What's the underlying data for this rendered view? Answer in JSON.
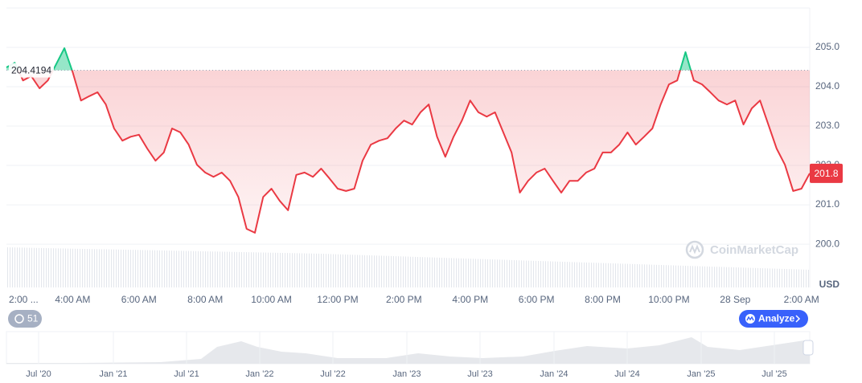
{
  "chart_data": {
    "type": "line",
    "categories": [
      "2:00 ...",
      null,
      null,
      null,
      null,
      null,
      null,
      null,
      "4:00 AM",
      null,
      null,
      null,
      null,
      null,
      null,
      null,
      "6:00 AM",
      null,
      null,
      null,
      null,
      null,
      null,
      null,
      "8:00 AM",
      null,
      null,
      null,
      null,
      null,
      null,
      null,
      "10:00 AM",
      null,
      null,
      null,
      null,
      null,
      null,
      null,
      "12:00 PM",
      null,
      null,
      null,
      null,
      null,
      null,
      null,
      "2:00 PM",
      null,
      null,
      null,
      null,
      null,
      null,
      null,
      "4:00 PM",
      null,
      null,
      null,
      null,
      null,
      null,
      null,
      "6:00 PM",
      null,
      null,
      null,
      null,
      null,
      null,
      null,
      "8:00 PM",
      null,
      null,
      null,
      null,
      null,
      null,
      null,
      "10:00 PM",
      null,
      null,
      null,
      null,
      null,
      null,
      null,
      "28 Sep",
      null,
      null,
      null,
      null,
      null,
      null,
      null,
      "2:00 AM",
      null
    ],
    "values": [
      204.49,
      204.61,
      204.16,
      204.27,
      203.96,
      204.16,
      204.57,
      204.98,
      204.37,
      203.65,
      203.76,
      203.86,
      203.55,
      202.94,
      202.63,
      202.73,
      202.78,
      202.43,
      202.12,
      202.33,
      202.94,
      202.84,
      202.53,
      202.02,
      201.82,
      201.71,
      201.82,
      201.61,
      201.2,
      200.39,
      200.29,
      201.2,
      201.41,
      201.1,
      200.86,
      201.76,
      201.82,
      201.71,
      201.92,
      201.67,
      201.41,
      201.35,
      201.41,
      202.12,
      202.53,
      202.63,
      202.69,
      202.94,
      203.14,
      203.04,
      203.35,
      203.55,
      202.73,
      202.22,
      202.73,
      203.14,
      203.65,
      203.35,
      203.24,
      203.35,
      202.84,
      202.33,
      201.31,
      201.61,
      201.82,
      201.92,
      201.61,
      201.31,
      201.61,
      201.61,
      201.82,
      201.92,
      202.33,
      202.33,
      202.53,
      202.84,
      202.53,
      202.73,
      202.94,
      203.55,
      204.06,
      204.16,
      204.88,
      204.16,
      204.06,
      203.86,
      203.65,
      203.55,
      203.65,
      203.04,
      203.45,
      203.65,
      203.04,
      202.43,
      202.02,
      201.35,
      201.41,
      201.8
    ],
    "reference_value": 204.4194,
    "up_color": "#16c784",
    "down_color": "#ea3943",
    "ylim": [
      198.9,
      206.0
    ],
    "yticks": [
      {
        "value": 200,
        "label": "200.0"
      },
      {
        "value": 201,
        "label": "201.0"
      },
      {
        "value": 202,
        "label": "202.0"
      },
      {
        "value": 203,
        "label": "203.0"
      },
      {
        "value": 204,
        "label": "204.0"
      },
      {
        "value": 205,
        "label": "205.0"
      }
    ],
    "grid": true
  },
  "ui": {
    "currency": "USD",
    "history_badge": "51",
    "analyze_button": "Analyze",
    "watermark": "CoinMarketCap",
    "navigator_labels": [
      "Jul '20",
      "Jan '21",
      "Jul '21",
      "Jan '22",
      "Jul '22",
      "Jan '23",
      "Jul '23",
      "Jan '24",
      "Jul '24",
      "Jan '25",
      "Jul '25"
    ]
  }
}
